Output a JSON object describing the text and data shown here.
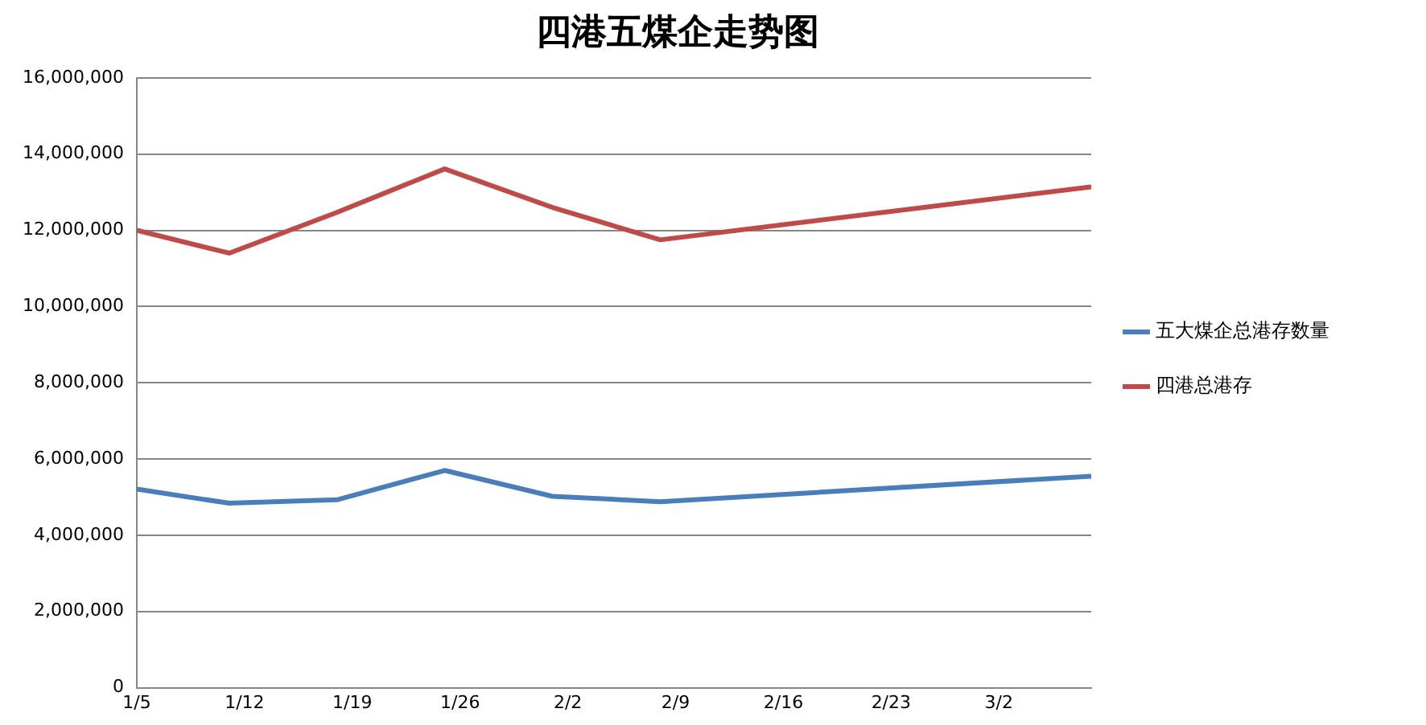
{
  "chart_data": {
    "type": "line",
    "title": "四港五煤企走势图",
    "series": [
      {
        "name": "五大煤企总港存数量",
        "color": "#4a7ebb",
        "x": [
          "--01-05",
          "--01-11",
          "--01-18",
          "--01-25",
          "--02-01",
          "--02-08",
          "--03-08"
        ],
        "values": [
          5210000,
          4840000,
          4930000,
          5700000,
          5020000,
          4880000,
          5550000
        ]
      },
      {
        "name": "四港总港存",
        "color": "#be4b48",
        "x": [
          "--01-05",
          "--01-11",
          "--01-18",
          "--01-25",
          "--02-01",
          "--02-08",
          "--03-08"
        ],
        "values": [
          12000000,
          11400000,
          12470000,
          13610000,
          12600000,
          11750000,
          13140000
        ]
      }
    ],
    "xlim": [
      "--01-05",
      "--03-08"
    ],
    "xticks": [
      {
        "value": "--01-05",
        "label": "1/5"
      },
      {
        "value": "--01-12",
        "label": "1/12"
      },
      {
        "value": "--01-19",
        "label": "1/19"
      },
      {
        "value": "--01-26",
        "label": "1/26"
      },
      {
        "value": "--02-02",
        "label": "2/2"
      },
      {
        "value": "--02-09",
        "label": "2/9"
      },
      {
        "value": "--02-16",
        "label": "2/16"
      },
      {
        "value": "--02-23",
        "label": "2/23"
      },
      {
        "value": "--03-02",
        "label": "3/2"
      }
    ],
    "ylim": [
      0,
      16000000
    ],
    "yticks": [
      {
        "value": 0,
        "label": "0"
      },
      {
        "value": 2000000,
        "label": "2,000,000"
      },
      {
        "value": 4000000,
        "label": "4,000,000"
      },
      {
        "value": 6000000,
        "label": "6,000,000"
      },
      {
        "value": 8000000,
        "label": "8,000,000"
      },
      {
        "value": 10000000,
        "label": "10,000,000"
      },
      {
        "value": 12000000,
        "label": "12,000,000"
      },
      {
        "value": 14000000,
        "label": "14,000,000"
      },
      {
        "value": 16000000,
        "label": "16,000,000"
      }
    ],
    "grid": "y",
    "legend": "right",
    "marker": "none",
    "line_style": "solid"
  }
}
